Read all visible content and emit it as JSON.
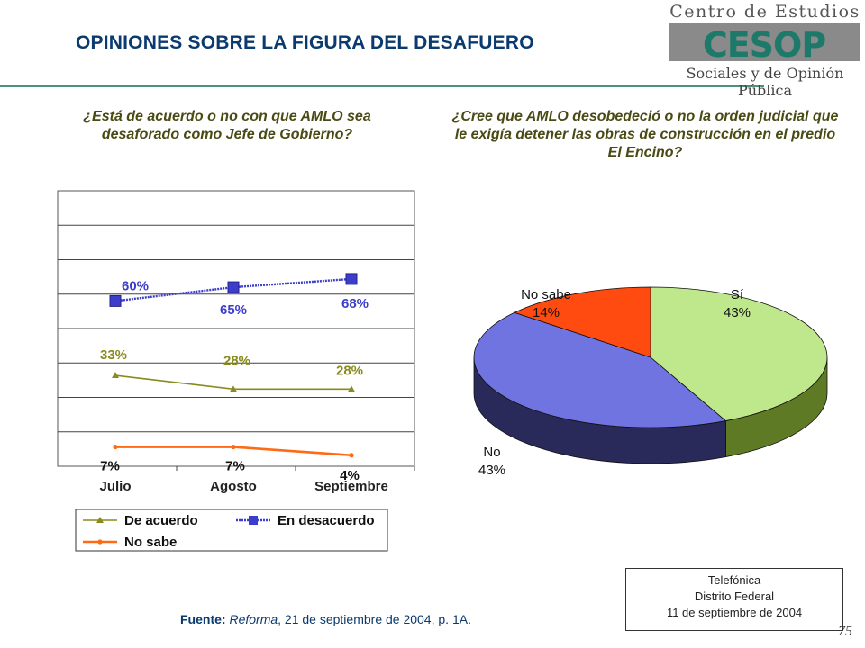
{
  "title": "OPINIONES SOBRE LA FIGURA  DEL DESAFUERO",
  "logo": {
    "top": "Centro de Estudios",
    "mark": "CESOP",
    "bottom": "Sociales y de Opinión Pública"
  },
  "question_left": "¿Está de acuerdo o no con que AMLO sea desaforado como Jefe de Gobierno?",
  "question_right": "¿Cree que AMLO  desobedeció o no la orden judicial que le exigía detener las obras de construcción en el predio El Encino?",
  "source": {
    "label": "Fuente:",
    "publication": "Reforma",
    "rest": ", 21 de septiembre de 2004, p. 1A."
  },
  "method": {
    "line1": "Telefónica",
    "line2": "Distrito Federal",
    "line3": "11 de septiembre de 2004"
  },
  "page_number": "75",
  "colors": {
    "de_acuerdo": "#8a8a1e",
    "en_desacuerdo": "#3d3dcc",
    "no_sabe": "#ff6a14",
    "pie_si": "#bfe88c",
    "pie_no": "#6f74e0",
    "pie_nosabe": "#ff4a10"
  },
  "chart_data": [
    {
      "type": "line",
      "categories": [
        "Julio",
        "Agosto",
        "Septiembre"
      ],
      "ylim": [
        0,
        100
      ],
      "grid": true,
      "legend": "bottom",
      "series": [
        {
          "name": "De acuerdo",
          "values": [
            33,
            28,
            28
          ],
          "labels": [
            "33%",
            "28%",
            "28%"
          ]
        },
        {
          "name": "En desacuerdo",
          "values": [
            60,
            65,
            68
          ],
          "labels": [
            "60%",
            "65%",
            "68%"
          ]
        },
        {
          "name": "No sabe",
          "values": [
            7,
            7,
            4
          ],
          "labels": [
            "7%",
            "7%",
            "4%"
          ]
        }
      ]
    },
    {
      "type": "pie",
      "slices": [
        {
          "label": "Sí",
          "value": 43,
          "text": "43%"
        },
        {
          "label": "No",
          "value": 43,
          "text": "43%"
        },
        {
          "label": "No sabe",
          "value": 14,
          "text": "14%"
        }
      ]
    }
  ]
}
